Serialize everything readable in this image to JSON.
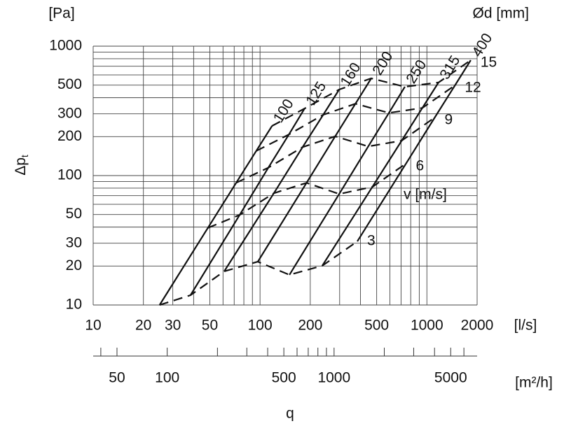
{
  "chart_data": {
    "type": "line",
    "xlog": true,
    "ylog": true,
    "grid": true,
    "y_unit": "[Pa]",
    "ylabel": {
      "main": "Δp",
      "sub": "t"
    },
    "x_unit": "[l/s]",
    "x2_unit": "[m²/h]",
    "xlabel": "q",
    "diameter_label": "Ød [mm]",
    "velocity_label": "v [m/s]",
    "xlim": [
      10,
      2000
    ],
    "ylim": [
      10,
      1000
    ],
    "xticks": [
      10,
      20,
      30,
      50,
      100,
      200,
      500,
      1000,
      2000
    ],
    "xminor": [
      40,
      60,
      70,
      80,
      90,
      300,
      400,
      600,
      700,
      800,
      900
    ],
    "yticks": [
      10,
      20,
      30,
      50,
      100,
      200,
      300,
      500,
      1000
    ],
    "yminor": [
      40,
      60,
      70,
      80,
      90,
      400,
      600,
      700,
      800,
      900
    ],
    "x2lim": [
      36,
      7200
    ],
    "x2ticks": [
      50,
      100,
      500,
      1000,
      5000
    ],
    "x2minor": [
      40,
      200,
      300,
      400,
      600,
      700,
      800,
      900,
      2000,
      3000,
      4000,
      6000
    ],
    "diameters": [
      {
        "name": "100",
        "color": "#111111",
        "x": [
          25.0,
          48.7,
          72.0,
          94.9,
          118
        ],
        "y": [
          10,
          39.4,
          88.1,
          155,
          242
        ]
      },
      {
        "name": "125",
        "color": "#111111",
        "x": [
          38.3,
          75.5,
          112,
          149,
          185
        ],
        "y": [
          11.9,
          49.7,
          115,
          208,
          330
        ]
      },
      {
        "name": "160",
        "color": "#111111",
        "x": [
          61.0,
          121,
          180,
          239,
          298
        ],
        "y": [
          18.2,
          73.1,
          166,
          295,
          462
        ]
      },
      {
        "name": "200",
        "color": "#111111",
        "x": [
          97.0,
          190,
          282,
          373,
          464
        ],
        "y": [
          21.6,
          87.9,
          201,
          359,
          564
        ]
      },
      {
        "name": "250",
        "color": "#111111",
        "x": [
          150,
          298,
          445,
          592,
          738
        ],
        "y": [
          17.1,
          72.1,
          168,
          305,
          486
        ]
      },
      {
        "name": "315",
        "color": "#111111",
        "x": [
          236,
          471,
          706,
          939,
          1174
        ],
        "y": [
          20.1,
          81.6,
          186,
          333,
          524
        ]
      },
      {
        "name": "400",
        "color": "#111111",
        "x": [
          383,
          750,
          1114,
          1473,
          1831
        ],
        "y": [
          31.0,
          124,
          281,
          498,
          780
        ]
      }
    ],
    "velocities": [
      {
        "name": "3",
        "color": "#111111",
        "x": [
          25.0,
          38.3,
          61.0,
          97.0,
          150,
          236,
          383
        ],
        "y": [
          10,
          11.9,
          18.2,
          21.6,
          17.1,
          20.1,
          31.0
        ]
      },
      {
        "name": "6",
        "color": "#111111",
        "x": [
          48.7,
          75.5,
          121,
          190,
          298,
          471,
          750
        ],
        "y": [
          39.4,
          49.7,
          73.1,
          87.9,
          72.1,
          81.6,
          124
        ]
      },
      {
        "name": "9",
        "color": "#111111",
        "x": [
          72.0,
          112,
          180,
          282,
          445,
          706,
          1114
        ],
        "y": [
          88.1,
          115,
          166,
          201,
          168,
          186,
          281
        ]
      },
      {
        "name": "12",
        "color": "#111111",
        "x": [
          94.9,
          149,
          239,
          373,
          592,
          939,
          1473
        ],
        "y": [
          155,
          208,
          295,
          359,
          305,
          333,
          498
        ]
      },
      {
        "name": "15",
        "color": "#111111",
        "x": [
          118,
          185,
          298,
          464,
          738,
          1174,
          1831
        ],
        "y": [
          242,
          330,
          462,
          564,
          486,
          524,
          780
        ]
      }
    ]
  }
}
